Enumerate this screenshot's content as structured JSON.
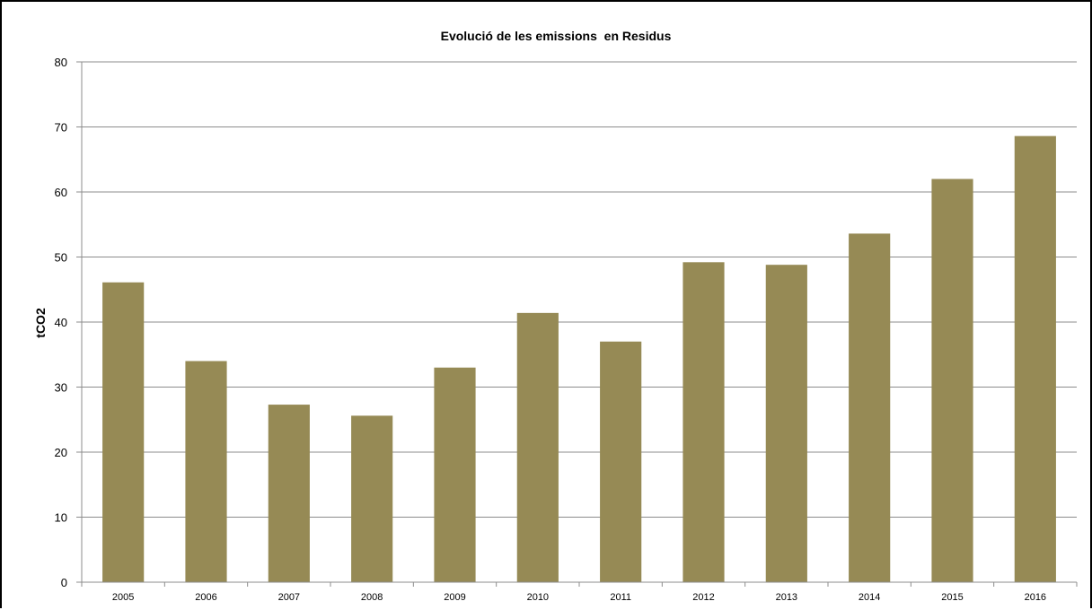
{
  "chart_data": {
    "type": "bar",
    "title": "Evolució de les emissions  en Residus",
    "xlabel": "",
    "ylabel": "tCO2",
    "categories": [
      "2005",
      "2006",
      "2007",
      "2008",
      "2009",
      "2010",
      "2011",
      "2012",
      "2013",
      "2014",
      "2015",
      "2016"
    ],
    "values": [
      46.1,
      34.0,
      27.3,
      25.6,
      33.0,
      41.4,
      37.0,
      49.2,
      48.8,
      53.6,
      62.0,
      68.6
    ],
    "ylim": [
      0,
      80
    ],
    "yticks": [
      "0",
      "10",
      "20",
      "30",
      "40",
      "50",
      "60",
      "70",
      "80"
    ],
    "grid": true,
    "legend": "none",
    "colors": {
      "bar": "#968A55",
      "grid": "#8C8C8C",
      "axis": "#8C8C8C",
      "frame": "#000000"
    }
  }
}
